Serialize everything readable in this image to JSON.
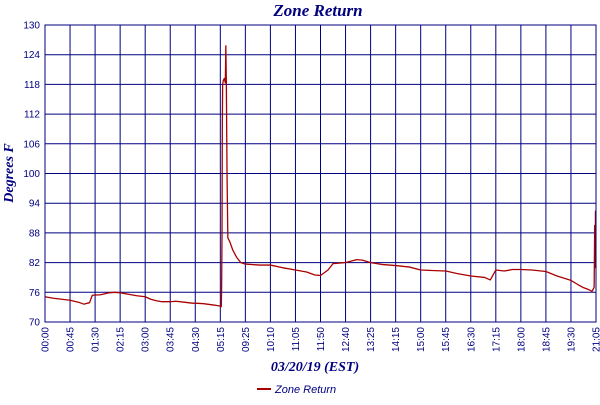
{
  "chart_data": {
    "type": "line",
    "title": "Zone Return",
    "xlabel": "03/20/19 (EST)",
    "ylabel": "Degrees F",
    "ylim": [
      70,
      130
    ],
    "yticks": [
      70,
      76,
      82,
      88,
      94,
      100,
      106,
      112,
      118,
      124,
      130
    ],
    "xlim": [
      "00:00",
      "21:05"
    ],
    "xticks": [
      "00:00",
      "00:45",
      "01:30",
      "02:15",
      "03:00",
      "03:45",
      "04:30",
      "05:15",
      "09:25",
      "10:10",
      "11:05",
      "11:50",
      "12:40",
      "13:25",
      "14:15",
      "15:00",
      "15:45",
      "16:30",
      "17:15",
      "18:00",
      "18:45",
      "19:30",
      "21:05"
    ],
    "grid": true,
    "legend_position": "bottom-left",
    "colors": {
      "series": "#aa0000",
      "grid": "#000080",
      "text": "#000080"
    },
    "series": [
      {
        "name": "Zone Return",
        "points": [
          [
            "00:00",
            75.1
          ],
          [
            "00:15",
            74.8
          ],
          [
            "00:30",
            74.6
          ],
          [
            "00:45",
            74.4
          ],
          [
            "01:00",
            74.0
          ],
          [
            "01:10",
            73.6
          ],
          [
            "01:20",
            73.9
          ],
          [
            "01:25",
            75.4
          ],
          [
            "01:40",
            75.5
          ],
          [
            "01:55",
            75.9
          ],
          [
            "02:05",
            76.0
          ],
          [
            "02:15",
            75.9
          ],
          [
            "02:30",
            75.6
          ],
          [
            "02:45",
            75.3
          ],
          [
            "03:00",
            75.1
          ],
          [
            "03:10",
            74.6
          ],
          [
            "03:20",
            74.3
          ],
          [
            "03:30",
            74.1
          ],
          [
            "03:45",
            74.1
          ],
          [
            "03:55",
            74.2
          ],
          [
            "04:10",
            74.0
          ],
          [
            "04:25",
            73.8
          ],
          [
            "04:30",
            73.8
          ],
          [
            "04:45",
            73.7
          ],
          [
            "05:05",
            73.4
          ],
          [
            "05:15",
            73.2
          ],
          [
            "05:20",
            73.1
          ],
          [
            "05:25",
            73.1
          ],
          [
            "05:28",
            77.0
          ],
          [
            "05:32",
            88.0
          ],
          [
            "05:35",
            110.0
          ],
          [
            "05:38",
            118.0
          ],
          [
            "05:45",
            118.8
          ],
          [
            "05:55",
            119.2
          ],
          [
            "06:05",
            118.3
          ],
          [
            "06:10",
            125.8
          ],
          [
            "06:15",
            118.5
          ],
          [
            "06:22",
            100.0
          ],
          [
            "06:30",
            87.0
          ],
          [
            "06:50",
            86.2
          ],
          [
            "07:20",
            84.5
          ],
          [
            "08:00",
            83.0
          ],
          [
            "08:40",
            82.0
          ],
          [
            "09:25",
            81.7
          ],
          [
            "09:50",
            81.5
          ],
          [
            "10:10",
            81.5
          ],
          [
            "10:35",
            81.0
          ],
          [
            "11:05",
            80.5
          ],
          [
            "11:25",
            80.1
          ],
          [
            "11:40",
            79.5
          ],
          [
            "11:50",
            79.4
          ],
          [
            "12:05",
            80.5
          ],
          [
            "12:15",
            81.8
          ],
          [
            "12:40",
            82.0
          ],
          [
            "13:00",
            82.6
          ],
          [
            "13:10",
            82.5
          ],
          [
            "13:25",
            82.0
          ],
          [
            "13:50",
            81.6
          ],
          [
            "14:15",
            81.4
          ],
          [
            "14:40",
            81.1
          ],
          [
            "15:00",
            80.5
          ],
          [
            "15:20",
            80.4
          ],
          [
            "15:45",
            80.3
          ],
          [
            "16:05",
            79.8
          ],
          [
            "16:30",
            79.3
          ],
          [
            "16:55",
            79.0
          ],
          [
            "17:05",
            78.5
          ],
          [
            "17:15",
            80.5
          ],
          [
            "17:30",
            80.3
          ],
          [
            "17:45",
            80.6
          ],
          [
            "18:00",
            80.6
          ],
          [
            "18:20",
            80.5
          ],
          [
            "18:45",
            80.2
          ],
          [
            "19:05",
            79.3
          ],
          [
            "19:30",
            78.4
          ],
          [
            "19:55",
            77.6
          ],
          [
            "20:15",
            77.0
          ],
          [
            "20:35",
            76.6
          ],
          [
            "20:50",
            76.2
          ],
          [
            "20:58",
            77.0
          ],
          [
            "21:00",
            89.5
          ],
          [
            "21:02",
            81.0
          ],
          [
            "21:03",
            92.5
          ]
        ]
      }
    ]
  }
}
